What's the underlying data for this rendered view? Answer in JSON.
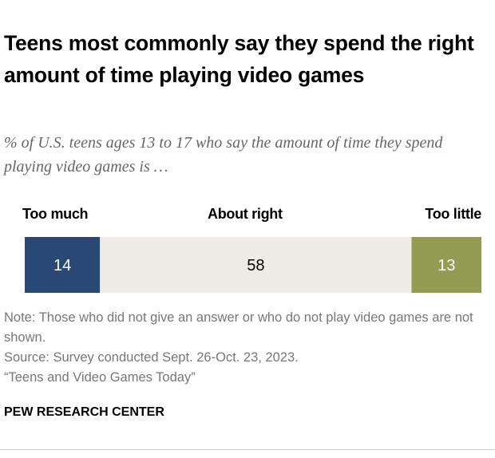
{
  "title": "Teens most commonly say they spend the right amount of time playing video games",
  "subtitle": "% of U.S. teens ages 13 to 17 who say the amount of time they spend playing video games is …",
  "chart_data": {
    "type": "bar",
    "orientation": "horizontal-stacked",
    "categories": [
      "Too much",
      "About right",
      "Too little"
    ],
    "values": [
      14,
      58,
      13
    ],
    "colors": [
      "#2a4876",
      "#eeebe4",
      "#949b52"
    ],
    "label_colors": [
      "#ffffff",
      "#000000",
      "#ffffff"
    ]
  },
  "note": "Note: Those who did not give an answer or who do not play video games are not shown.",
  "source": "Source: Survey conducted Sept. 26-Oct. 23, 2023.",
  "report": "“Teens and Video Games Today”",
  "footer": "PEW RESEARCH CENTER"
}
